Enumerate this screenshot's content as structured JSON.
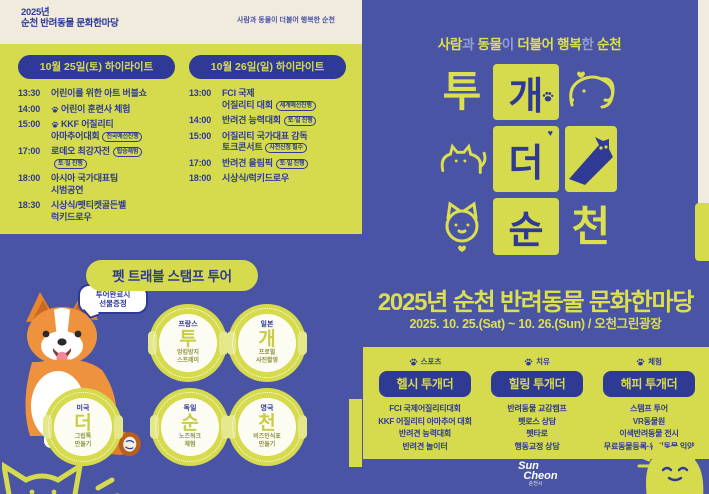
{
  "colors": {
    "blue": "#4a54a4",
    "navy": "#2e3a96",
    "yellow": "#d6da4d",
    "brightyellow": "#dce04e",
    "cream": "#f0ebdd",
    "lav": "#949dd1",
    "white": "#ffffff"
  },
  "top_strip": {
    "title_line1": "2025년",
    "title_line2": "순천 반려동물 문화한마당",
    "tagline": "사람과 동물이 더불어 행복한 순천"
  },
  "schedule": {
    "days": [
      {
        "header": "10월 25일(토) 하이라이트",
        "items": [
          {
            "time": "13:30",
            "lines": [
              "어린이를 위한 아트 버블쇼"
            ],
            "paw": false,
            "badges": []
          },
          {
            "time": "14:00",
            "lines": [
              "어린이 훈련사 체험"
            ],
            "paw": true,
            "badges": []
          },
          {
            "time": "15:00",
            "lines": [
              "KKF 어질리티",
              "아마추어대회"
            ],
            "paw": true,
            "badges": [
              "전국예선진행"
            ]
          },
          {
            "time": "17:00",
            "lines": [
              "로데오 최강자전"
            ],
            "paw": false,
            "badges": [
              "탑승체험",
              "토·일 진행"
            ]
          },
          {
            "time": "18:00",
            "lines": [
              "아시아 국가대표팀",
              "시범공연"
            ],
            "paw": false,
            "badges": []
          },
          {
            "time": "18:30",
            "lines": [
              "시상식/펫티켓골든벨",
              "럭키드로우"
            ],
            "paw": false,
            "badges": []
          }
        ]
      },
      {
        "header": "10월 26일(일) 하이라이트",
        "items": [
          {
            "time": "13:00",
            "lines": [
              "FCI 국제",
              "어질리티 대회"
            ],
            "paw": false,
            "badges": [
              "세계예선진행"
            ]
          },
          {
            "time": "14:00",
            "lines": [
              "반려견 능력대회"
            ],
            "paw": false,
            "badges": [
              "토·일 진행"
            ]
          },
          {
            "time": "15:00",
            "lines": [
              "어질리티 국가대표 감독",
              "토크콘서트"
            ],
            "paw": false,
            "badges": [
              "사전신청 필수"
            ]
          },
          {
            "time": "17:00",
            "lines": [
              "반려견 올림픽"
            ],
            "paw": false,
            "badges": [
              "토·일 진행"
            ]
          },
          {
            "time": "18:00",
            "lines": [
              "시상식/럭키드로우"
            ],
            "paw": false,
            "badges": []
          }
        ]
      }
    ]
  },
  "stamp_tour": {
    "title": "펫 트래블 스탬프 투어",
    "bubble_lines": [
      "투어완료시",
      "선물증정"
    ],
    "stamps": [
      {
        "country": "프랑스",
        "syllable": "투",
        "activity_lines": [
          "엉킴방지",
          "스프레이"
        ]
      },
      {
        "country": "일본",
        "syllable": "개",
        "activity_lines": [
          "프로필",
          "사진촬영"
        ]
      },
      {
        "country": "미국",
        "syllable": "더",
        "activity_lines": [
          "그립톡",
          "만들기"
        ]
      },
      {
        "country": "독일",
        "syllable": "순",
        "activity_lines": [
          "노즈워크",
          "체험"
        ]
      },
      {
        "country": "영국",
        "syllable": "천",
        "activity_lines": [
          "비즈인식표",
          "만들기"
        ]
      }
    ]
  },
  "main": {
    "tagline_segments": [
      {
        "text": "사람",
        "strong": true
      },
      {
        "text": "과 ",
        "strong": false
      },
      {
        "text": "동물",
        "strong": true
      },
      {
        "text": "이 ",
        "strong": false
      },
      {
        "text": "더불어 행복",
        "strong": true
      },
      {
        "text": "한 ",
        "strong": false
      },
      {
        "text": "순천",
        "strong": true
      }
    ],
    "logo_letters": [
      "투",
      "개",
      "더",
      "순",
      "천"
    ],
    "title": "2025년 순천 반려동물 문화한마당",
    "date_venue": "2025. 10. 25.(Sat) ~ 10. 26.(Sun) / 오천그린광장",
    "programs": [
      {
        "category": "스포츠",
        "title": "헬시 투개더",
        "bold_count": 2,
        "items": [
          "FCI 국제어질리티대회",
          "KKF 어질리티 아마추어 대회",
          "반려견 능력대회",
          "반려견 놀이터"
        ]
      },
      {
        "category": "치유",
        "title": "힐링 투개더",
        "bold_count": 0,
        "items": [
          "반려동물 교감캠프",
          "펫로스 상담",
          "펫타로",
          "행동교정 상담"
        ]
      },
      {
        "category": "체험",
        "title": "해피 투개더",
        "bold_count": 0,
        "items": [
          "스탬프 투어",
          "VR동물원",
          "이색반려동물 전시",
          "무료동물등록·유기동물 입양"
        ]
      }
    ],
    "footer": {
      "logo_line1": "Sun",
      "logo_line2": "Cheon",
      "logo_sub": "순천시"
    }
  }
}
